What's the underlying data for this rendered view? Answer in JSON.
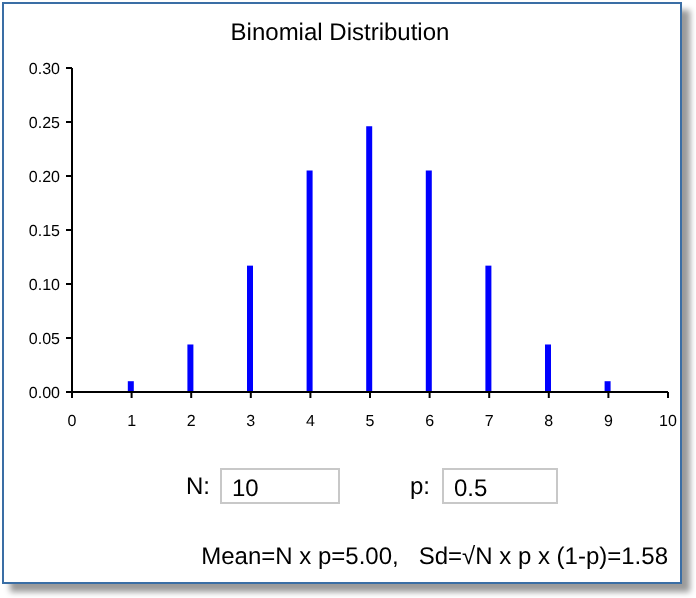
{
  "chart_data": {
    "type": "bar",
    "title": "Binomial Distribution",
    "x": [
      1,
      2,
      3,
      4,
      5,
      6,
      7,
      8,
      9
    ],
    "values": [
      0.01,
      0.044,
      0.117,
      0.205,
      0.246,
      0.205,
      0.117,
      0.044,
      0.01
    ],
    "color": "#0000ff",
    "xlim": [
      0,
      10
    ],
    "xticks": [
      0,
      1,
      2,
      3,
      4,
      5,
      6,
      7,
      8,
      9,
      10
    ],
    "ylim": [
      0,
      0.3
    ],
    "yticks": [
      {
        "value": 0,
        "label": "0.00"
      },
      {
        "value": 0.05,
        "label": "0.05"
      },
      {
        "value": 0.1,
        "label": "0.10"
      },
      {
        "value": 0.15,
        "label": "0.15"
      },
      {
        "value": 0.2,
        "label": "0.20"
      },
      {
        "value": 0.25,
        "label": "0.25"
      },
      {
        "value": 0.3,
        "label": "0.30"
      }
    ],
    "grid": false,
    "legend": false,
    "annotations": [
      "N:",
      "10",
      "p:",
      "0.5",
      "Mean=N x p=5.00,   Sd=√N x p x (1-p)=1.58"
    ]
  }
}
